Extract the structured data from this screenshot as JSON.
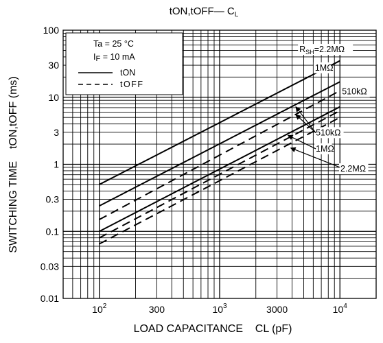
{
  "chart_data": {
    "type": "line",
    "title": "tON,tOFF— C",
    "title_subscript": "L",
    "xlabel": "LOAD CAPACITANCE    CL (pF)",
    "ylabel": "SWITCHING TIME    tON,tOFF (ms)",
    "x_scale": "log",
    "y_scale": "log",
    "xlim": [
      50,
      20000
    ],
    "ylim": [
      0.01,
      100
    ],
    "grid": true,
    "x_ticks": [
      {
        "value": 100,
        "base": "10",
        "exp": "2"
      },
      {
        "value": 300,
        "label": "300"
      },
      {
        "value": 1000,
        "base": "10",
        "exp": "3"
      },
      {
        "value": 3000,
        "label": "3000"
      },
      {
        "value": 10000,
        "base": "10",
        "exp": "4"
      }
    ],
    "y_ticks": [
      {
        "value": 100,
        "label": "100"
      },
      {
        "value": 30,
        "label": "30"
      },
      {
        "value": 10,
        "label": "10"
      },
      {
        "value": 3,
        "label": "3"
      },
      {
        "value": 1,
        "label": "1"
      },
      {
        "value": 0.3,
        "label": "0.3"
      },
      {
        "value": 0.1,
        "label": "0.1"
      },
      {
        "value": 0.03,
        "label": "0.03"
      },
      {
        "value": 0.01,
        "label": "0.01"
      }
    ],
    "conditions": {
      "ta": "Ta = 25 °C",
      "if_prefix": "I",
      "if_sub": "F",
      "if_rest": " = 10 mA"
    },
    "legend": {
      "placement": "top-left",
      "entries": [
        {
          "label": "tON",
          "style": "solid"
        },
        {
          "label": "tOFF",
          "style": "dashed"
        }
      ]
    },
    "series": [
      {
        "kind": "ton",
        "style": "solid",
        "x": [
          100,
          10000
        ],
        "y": [
          0.5,
          35
        ]
      },
      {
        "kind": "ton",
        "style": "solid",
        "x": [
          100,
          10000
        ],
        "y": [
          0.24,
          17
        ]
      },
      {
        "kind": "ton",
        "style": "solid",
        "x": [
          100,
          10000
        ],
        "y": [
          0.1,
          7.2
        ]
      },
      {
        "kind": "toff",
        "style": "dashed",
        "x": [
          100,
          10000
        ],
        "y": [
          0.15,
          12.5
        ]
      },
      {
        "kind": "toff",
        "style": "dashed",
        "x": [
          100,
          10000
        ],
        "y": [
          0.08,
          6.3
        ]
      },
      {
        "kind": "toff",
        "style": "dashed",
        "x": [
          100,
          10000
        ],
        "y": [
          0.065,
          5
        ]
      }
    ],
    "annotations": [
      {
        "prefix": "R",
        "sub": "SH",
        "text": "=2.2MΩ",
        "x": 4600,
        "y": 47
      },
      {
        "text": "1MΩ",
        "x": 6200,
        "y": 25
      },
      {
        "text": "510kΩ",
        "x": 10400,
        "y": 11
      },
      {
        "text": "510kΩ",
        "x": 6300,
        "y": 2.7,
        "arrow_from": [
          6300,
          2.95
        ],
        "arrow_to": [
          4300,
          7.2
        ],
        "arrow_to2": [
          4300,
          5.5
        ]
      },
      {
        "text": "1MΩ",
        "x": 6300,
        "y": 1.55,
        "arrow_from": [
          6300,
          1.7
        ],
        "arrow_to": [
          3700,
          2.7
        ]
      },
      {
        "text": "2.2MΩ",
        "x": 10100,
        "y": 0.78,
        "arrow_from": [
          10000,
          0.9
        ],
        "arrow_to": [
          3900,
          1.75
        ]
      }
    ]
  }
}
